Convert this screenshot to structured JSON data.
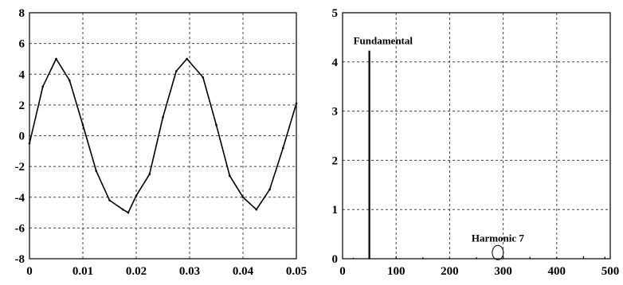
{
  "chart_data": [
    {
      "type": "line",
      "title": "",
      "xlabel": "",
      "ylabel": "",
      "xlim": [
        0,
        0.05
      ],
      "ylim": [
        -8,
        8
      ],
      "x_ticks": [
        "0",
        "0.01",
        "0.02",
        "0.03",
        "0.04",
        "0.05"
      ],
      "y_ticks": [
        "8",
        "6",
        "4",
        "2",
        "0",
        "-2",
        "-4",
        "-6",
        "-8"
      ],
      "grid": true,
      "series": [
        {
          "color": "#000000",
          "x": [
            0,
            0.0025,
            0.005,
            0.0075,
            0.01,
            0.0125,
            0.015,
            0.0175,
            0.0185,
            0.02,
            0.0225,
            0.025,
            0.0275,
            0.0295,
            0.0325,
            0.035,
            0.0375,
            0.04,
            0.0425,
            0.045,
            0.0475,
            0.05
          ],
          "y": [
            -0.5,
            3.2,
            5.0,
            3.6,
            0.7,
            -2.3,
            -4.2,
            -4.8,
            -5.0,
            -3.9,
            -2.5,
            1.2,
            4.2,
            5.0,
            3.8,
            0.7,
            -2.6,
            -4.0,
            -4.8,
            -3.5,
            -0.8,
            2.1
          ]
        }
      ]
    },
    {
      "type": "bar",
      "title": "",
      "xlabel": "",
      "ylabel": "",
      "xlim": [
        0,
        500
      ],
      "ylim": [
        0,
        5
      ],
      "x_ticks": [
        "0",
        "100",
        "200",
        "300",
        "400",
        "500"
      ],
      "y_ticks": [
        "5",
        "4",
        "3",
        "2",
        "1",
        "0"
      ],
      "grid": true,
      "series": [
        {
          "color": "#000000",
          "x": [
            20,
            50,
            100,
            150,
            200,
            250,
            300,
            350,
            400,
            450,
            490
          ],
          "values": [
            0.02,
            4.23,
            0.05,
            0.03,
            0.02,
            0.03,
            0.06,
            0.04,
            0.03,
            0.05,
            0.04
          ]
        }
      ],
      "annotations": [
        {
          "text": "Fundamental",
          "x": 50,
          "y": 4.23
        },
        {
          "text": "Harmonic 7",
          "x": 290,
          "y": 0.06
        }
      ]
    }
  ]
}
